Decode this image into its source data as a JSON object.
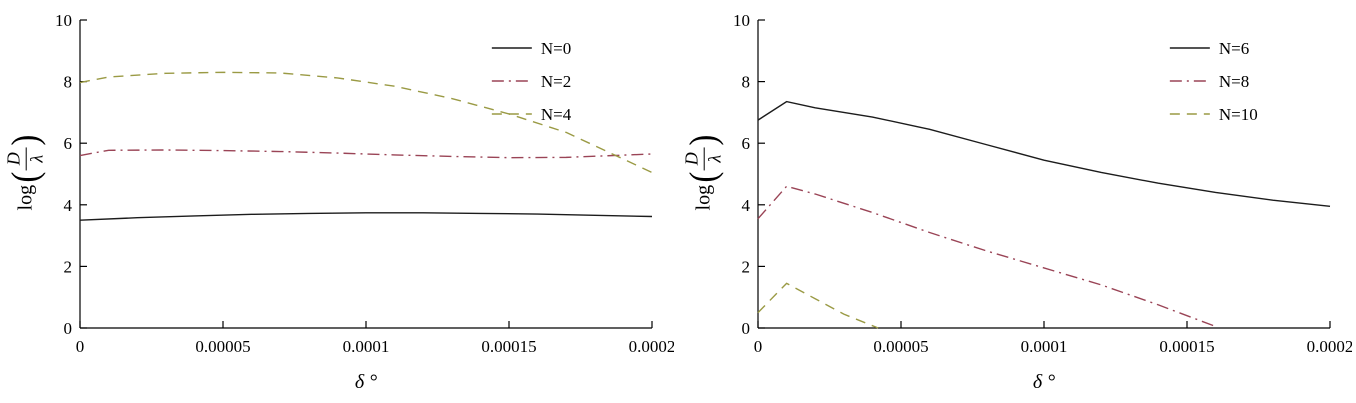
{
  "figure": {
    "background": "#ffffff",
    "axis_color": "#000000"
  },
  "chart_data": [
    {
      "type": "line",
      "title": "",
      "xlabel": "δ °",
      "ylabel": "log(D/λ)",
      "ylabel_parts": {
        "fn": "log",
        "open": "(",
        "numerator": "D",
        "denominator": "λ",
        "close": ")"
      },
      "xlim": [
        0,
        0.0002
      ],
      "ylim": [
        0,
        10
      ],
      "xticks": [
        0,
        5e-05,
        0.0001,
        0.00015,
        0.0002
      ],
      "xtick_labels": [
        "0",
        "0.00005",
        "0.0001",
        "0.00015",
        "0.0002"
      ],
      "yticks": [
        0,
        2,
        4,
        6,
        8,
        10
      ],
      "ytick_labels": [
        "0",
        "2",
        "4",
        "6",
        "8",
        "10"
      ],
      "grid": false,
      "legend_position": "top-right",
      "series": [
        {
          "name": "N=0",
          "color": "#1c1c1c",
          "dash": "solid",
          "x": [
            0,
            2e-05,
            4e-05,
            6e-05,
            8e-05,
            0.0001,
            0.00012,
            0.00014,
            0.00016,
            0.00018,
            0.0002
          ],
          "y": [
            3.5,
            3.58,
            3.64,
            3.69,
            3.72,
            3.74,
            3.74,
            3.72,
            3.7,
            3.66,
            3.62
          ]
        },
        {
          "name": "N=2",
          "color": "#9a4456",
          "dash": "dashdot",
          "x": [
            0,
            1e-05,
            3e-05,
            5e-05,
            7e-05,
            9e-05,
            0.00011,
            0.00013,
            0.00015,
            0.00017,
            0.0002
          ],
          "y": [
            5.6,
            5.77,
            5.78,
            5.76,
            5.73,
            5.68,
            5.62,
            5.57,
            5.53,
            5.54,
            5.65
          ]
        },
        {
          "name": "N=4",
          "color": "#9a9a44",
          "dash": "dashed",
          "x": [
            0,
            1e-05,
            3e-05,
            5e-05,
            7e-05,
            9e-05,
            0.00011,
            0.00013,
            0.00015,
            0.00017,
            0.0002
          ],
          "y": [
            7.97,
            8.15,
            8.27,
            8.3,
            8.28,
            8.12,
            7.85,
            7.45,
            6.95,
            6.35,
            5.05
          ]
        }
      ]
    },
    {
      "type": "line",
      "title": "",
      "xlabel": "δ °",
      "ylabel": "log(D/λ)",
      "ylabel_parts": {
        "fn": "log",
        "open": "(",
        "numerator": "D",
        "denominator": "λ",
        "close": ")"
      },
      "xlim": [
        0,
        0.0002
      ],
      "ylim": [
        0,
        10
      ],
      "xticks": [
        0,
        5e-05,
        0.0001,
        0.00015,
        0.0002
      ],
      "xtick_labels": [
        "0",
        "0.00005",
        "0.0001",
        "0.00015",
        "0.0002"
      ],
      "yticks": [
        0,
        2,
        4,
        6,
        8,
        10
      ],
      "ytick_labels": [
        "0",
        "2",
        "4",
        "6",
        "8",
        "10"
      ],
      "grid": false,
      "legend_position": "top-right",
      "series": [
        {
          "name": "N=6",
          "color": "#1c1c1c",
          "dash": "solid",
          "x": [
            0,
            1e-05,
            2e-05,
            4e-05,
            6e-05,
            8e-05,
            0.0001,
            0.00012,
            0.00014,
            0.00016,
            0.00018,
            0.0002
          ],
          "y": [
            6.75,
            7.35,
            7.15,
            6.85,
            6.45,
            5.95,
            5.45,
            5.05,
            4.7,
            4.4,
            4.15,
            3.95
          ]
        },
        {
          "name": "N=8",
          "color": "#9a4456",
          "dash": "dashdot",
          "x": [
            0,
            1e-05,
            2e-05,
            4e-05,
            6e-05,
            8e-05,
            0.0001,
            0.00012,
            0.00014,
            0.00016
          ],
          "y": [
            3.55,
            4.6,
            4.35,
            3.75,
            3.1,
            2.5,
            1.95,
            1.4,
            0.75,
            0.05
          ]
        },
        {
          "name": "N=10",
          "color": "#9a9a44",
          "dash": "dashed",
          "x": [
            0,
            1e-05,
            2e-05,
            3e-05,
            4.2e-05
          ],
          "y": [
            0.5,
            1.45,
            0.95,
            0.45,
            0.0
          ]
        }
      ]
    }
  ]
}
